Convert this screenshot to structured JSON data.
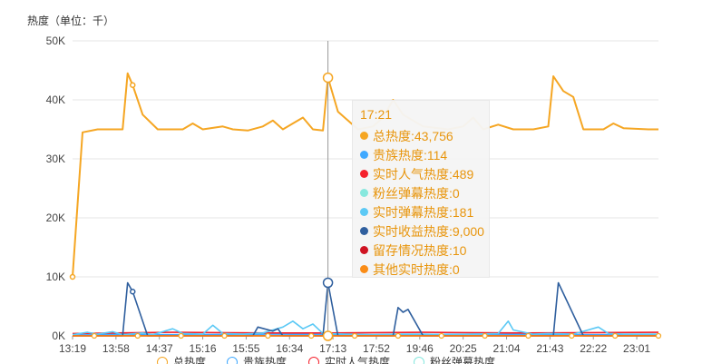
{
  "unit_label": "热度（单位：千）",
  "tooltip": {
    "time": "17:21",
    "rows": [
      {
        "label": "总热度",
        "value": "43,756",
        "color": "#f5a623"
      },
      {
        "label": "贵族热度",
        "value": "114",
        "color": "#40a9ff"
      },
      {
        "label": "实时人气热度",
        "value": "489",
        "color": "#f5222d"
      },
      {
        "label": "粉丝弹幕热度",
        "value": "0",
        "color": "#87e8de"
      },
      {
        "label": "实时弹幕热度",
        "value": "181",
        "color": "#5cc9f5"
      },
      {
        "label": "实时收益热度",
        "value": "9,000",
        "color": "#2f5f9e"
      },
      {
        "label": "留存情况热度",
        "value": "10",
        "color": "#cf1322"
      },
      {
        "label": "其他实时热度",
        "value": "0",
        "color": "#fa8c16"
      }
    ]
  },
  "legend": [
    {
      "name": "总热度",
      "color": "#f5a623"
    },
    {
      "name": "贵族热度",
      "color": "#40a9ff"
    },
    {
      "name": "实时人气热度",
      "color": "#f5222d"
    },
    {
      "name": "粉丝弹幕热度",
      "color": "#87e8de"
    }
  ],
  "chart_data": {
    "type": "line",
    "ylabel": "热度（单位：千）",
    "ylim": [
      0,
      50000
    ],
    "y_ticks": [
      0,
      10000,
      20000,
      30000,
      40000,
      50000
    ],
    "y_tick_labels": [
      "0K",
      "10K",
      "20K",
      "30K",
      "40K",
      "50K"
    ],
    "x_ticks": [
      "13:19",
      "13:58",
      "14:37",
      "15:16",
      "15:55",
      "16:34",
      "17:13",
      "17:52",
      "19:46",
      "20:25",
      "21:04",
      "21:43",
      "22:22",
      "23:01"
    ],
    "x_count": 118,
    "highlight_index": 51,
    "series": [
      {
        "name": "总热度",
        "color": "#f5a623",
        "points": [
          [
            0,
            10000
          ],
          [
            2,
            34500
          ],
          [
            5,
            35000
          ],
          [
            10,
            35000
          ],
          [
            11,
            44500
          ],
          [
            12,
            42500
          ],
          [
            14,
            37500
          ],
          [
            17,
            35000
          ],
          [
            22,
            35000
          ],
          [
            24,
            36000
          ],
          [
            26,
            35000
          ],
          [
            30,
            35500
          ],
          [
            32,
            35000
          ],
          [
            35,
            34800
          ],
          [
            38,
            35500
          ],
          [
            40,
            36500
          ],
          [
            42,
            35000
          ],
          [
            44,
            36000
          ],
          [
            46,
            37000
          ],
          [
            48,
            35000
          ],
          [
            50,
            34800
          ],
          [
            51,
            43756
          ],
          [
            53,
            38000
          ],
          [
            55,
            36500
          ],
          [
            57,
            35000
          ],
          [
            60,
            35500
          ],
          [
            62,
            37000
          ],
          [
            64,
            40000
          ],
          [
            66,
            37500
          ],
          [
            70,
            35500
          ],
          [
            75,
            35000
          ],
          [
            78,
            35500
          ],
          [
            80,
            37000
          ],
          [
            82,
            35000
          ],
          [
            85,
            35800
          ],
          [
            88,
            35000
          ],
          [
            92,
            35000
          ],
          [
            95,
            35500
          ],
          [
            96,
            44000
          ],
          [
            98,
            41500
          ],
          [
            100,
            40500
          ],
          [
            102,
            35000
          ],
          [
            106,
            35000
          ],
          [
            108,
            36000
          ],
          [
            110,
            35200
          ],
          [
            115,
            35000
          ],
          [
            117,
            35000
          ]
        ]
      },
      {
        "name": "贵族热度",
        "color": "#40a9ff",
        "points": [
          [
            0,
            300
          ],
          [
            20,
            200
          ],
          [
            40,
            300
          ],
          [
            60,
            200
          ],
          [
            80,
            300
          ],
          [
            100,
            200
          ],
          [
            117,
            200
          ]
        ]
      },
      {
        "name": "实时人气热度",
        "color": "#f5222d",
        "points": [
          [
            0,
            400
          ],
          [
            20,
            600
          ],
          [
            40,
            500
          ],
          [
            51,
            489
          ],
          [
            70,
            600
          ],
          [
            90,
            500
          ],
          [
            117,
            600
          ]
        ]
      },
      {
        "name": "粉丝弹幕热度",
        "color": "#87e8de",
        "points": [
          [
            0,
            0
          ],
          [
            117,
            0
          ]
        ]
      },
      {
        "name": "实时弹幕热度",
        "color": "#5cc9f5",
        "points": [
          [
            0,
            200
          ],
          [
            3,
            600
          ],
          [
            5,
            300
          ],
          [
            8,
            700
          ],
          [
            10,
            200
          ],
          [
            14,
            500
          ],
          [
            16,
            200
          ],
          [
            20,
            1200
          ],
          [
            22,
            400
          ],
          [
            26,
            300
          ],
          [
            28,
            1800
          ],
          [
            30,
            400
          ],
          [
            34,
            300
          ],
          [
            38,
            500
          ],
          [
            42,
            1500
          ],
          [
            44,
            2500
          ],
          [
            46,
            1200
          ],
          [
            48,
            2000
          ],
          [
            50,
            400
          ],
          [
            55,
            300
          ],
          [
            60,
            200
          ],
          [
            65,
            300
          ],
          [
            70,
            300
          ],
          [
            75,
            200
          ],
          [
            80,
            300
          ],
          [
            85,
            400
          ],
          [
            87,
            2500
          ],
          [
            88,
            1000
          ],
          [
            92,
            300
          ],
          [
            95,
            400
          ],
          [
            100,
            300
          ],
          [
            105,
            1500
          ],
          [
            107,
            400
          ],
          [
            110,
            300
          ],
          [
            117,
            300
          ]
        ]
      },
      {
        "name": "实时收益热度",
        "color": "#2f5f9e",
        "points": [
          [
            0,
            0
          ],
          [
            10,
            0
          ],
          [
            11,
            9000
          ],
          [
            12,
            7500
          ],
          [
            15,
            0
          ],
          [
            36,
            0
          ],
          [
            37,
            1500
          ],
          [
            40,
            800
          ],
          [
            41,
            1200
          ],
          [
            42,
            0
          ],
          [
            50,
            0
          ],
          [
            51,
            9000
          ],
          [
            53,
            0
          ],
          [
            64,
            0
          ],
          [
            65,
            4800
          ],
          [
            66,
            4000
          ],
          [
            67,
            4500
          ],
          [
            70,
            0
          ],
          [
            96,
            0
          ],
          [
            97,
            9000
          ],
          [
            102,
            0
          ],
          [
            117,
            0
          ]
        ]
      },
      {
        "name": "留存情况热度",
        "color": "#cf1322",
        "points": [
          [
            0,
            10
          ],
          [
            117,
            10
          ]
        ]
      },
      {
        "name": "其他实时热度",
        "color": "#fa8c16",
        "points": [
          [
            0,
            0
          ],
          [
            117,
            0
          ]
        ]
      }
    ],
    "markers": [
      {
        "series": 0,
        "index": 0,
        "value": 10000
      },
      {
        "series": 0,
        "index": 12,
        "value": 42500
      },
      {
        "series": 0,
        "index": 51,
        "value": 43756
      },
      {
        "series": 5,
        "index": 12,
        "value": 7500
      },
      {
        "series": 5,
        "index": 51,
        "value": 9000
      }
    ]
  }
}
